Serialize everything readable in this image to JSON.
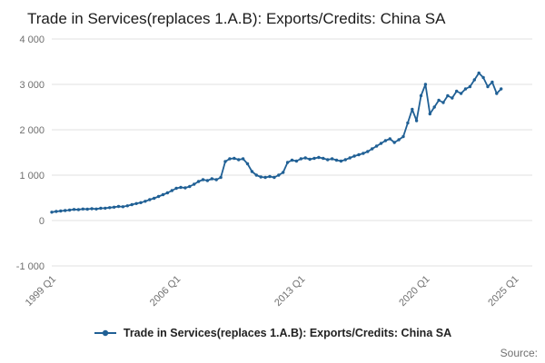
{
  "title": "Trade in Services(replaces 1.A.B): Exports/Credits: China SA",
  "source_label": "Source:",
  "legend": {
    "label": "Trade in Services(replaces 1.A.B): Exports/Credits: China SA"
  },
  "colors": {
    "line": "#206095",
    "grid": "#e0e0e0",
    "tick_text": "#6f6f6f",
    "title_text": "#1b1b1b"
  },
  "chart_data": {
    "type": "line",
    "title": "Trade in Services(replaces 1.A.B): Exports/Credits: China SA",
    "xlabel": "",
    "ylabel": "",
    "ylim": [
      -1000,
      4000
    ],
    "grid": "horizontal",
    "legend_position": "bottom",
    "x_start": "1999 Q1",
    "frequency": "quarterly",
    "x_domain": 108,
    "x_ticks": [
      {
        "index": 0,
        "label": "1999 Q1"
      },
      {
        "index": 28,
        "label": "2006 Q1"
      },
      {
        "index": 56,
        "label": "2013 Q1"
      },
      {
        "index": 84,
        "label": "2020 Q1"
      },
      {
        "index": 104,
        "label": "2025 Q1"
      }
    ],
    "y_ticks": [
      {
        "value": -1000,
        "label": "-1 000"
      },
      {
        "value": 0,
        "label": "0"
      },
      {
        "value": 1000,
        "label": "1 000"
      },
      {
        "value": 2000,
        "label": "2 000"
      },
      {
        "value": 3000,
        "label": "3 000"
      },
      {
        "value": 4000,
        "label": "4 000"
      }
    ],
    "series": [
      {
        "name": "Trade in Services(replaces 1.A.B): Exports/Credits: China SA",
        "color": "#206095",
        "values": [
          185,
          200,
          210,
          220,
          230,
          245,
          240,
          255,
          250,
          260,
          255,
          270,
          272,
          285,
          295,
          310,
          305,
          325,
          350,
          375,
          395,
          425,
          460,
          490,
          530,
          570,
          610,
          660,
          710,
          730,
          720,
          750,
          800,
          860,
          900,
          880,
          920,
          900,
          950,
          1300,
          1360,
          1370,
          1340,
          1360,
          1250,
          1080,
          1000,
          960,
          950,
          970,
          950,
          1000,
          1060,
          1280,
          1330,
          1310,
          1360,
          1380,
          1350,
          1370,
          1390,
          1370,
          1340,
          1360,
          1330,
          1310,
          1340,
          1380,
          1420,
          1450,
          1480,
          1520,
          1580,
          1640,
          1700,
          1760,
          1800,
          1720,
          1780,
          1850,
          2150,
          2450,
          2200,
          2750,
          3000,
          2350,
          2500,
          2650,
          2600,
          2750,
          2700,
          2850,
          2800,
          2900,
          2950,
          3100,
          3250,
          3150,
          2950,
          3050,
          2800,
          2900
        ]
      }
    ]
  }
}
